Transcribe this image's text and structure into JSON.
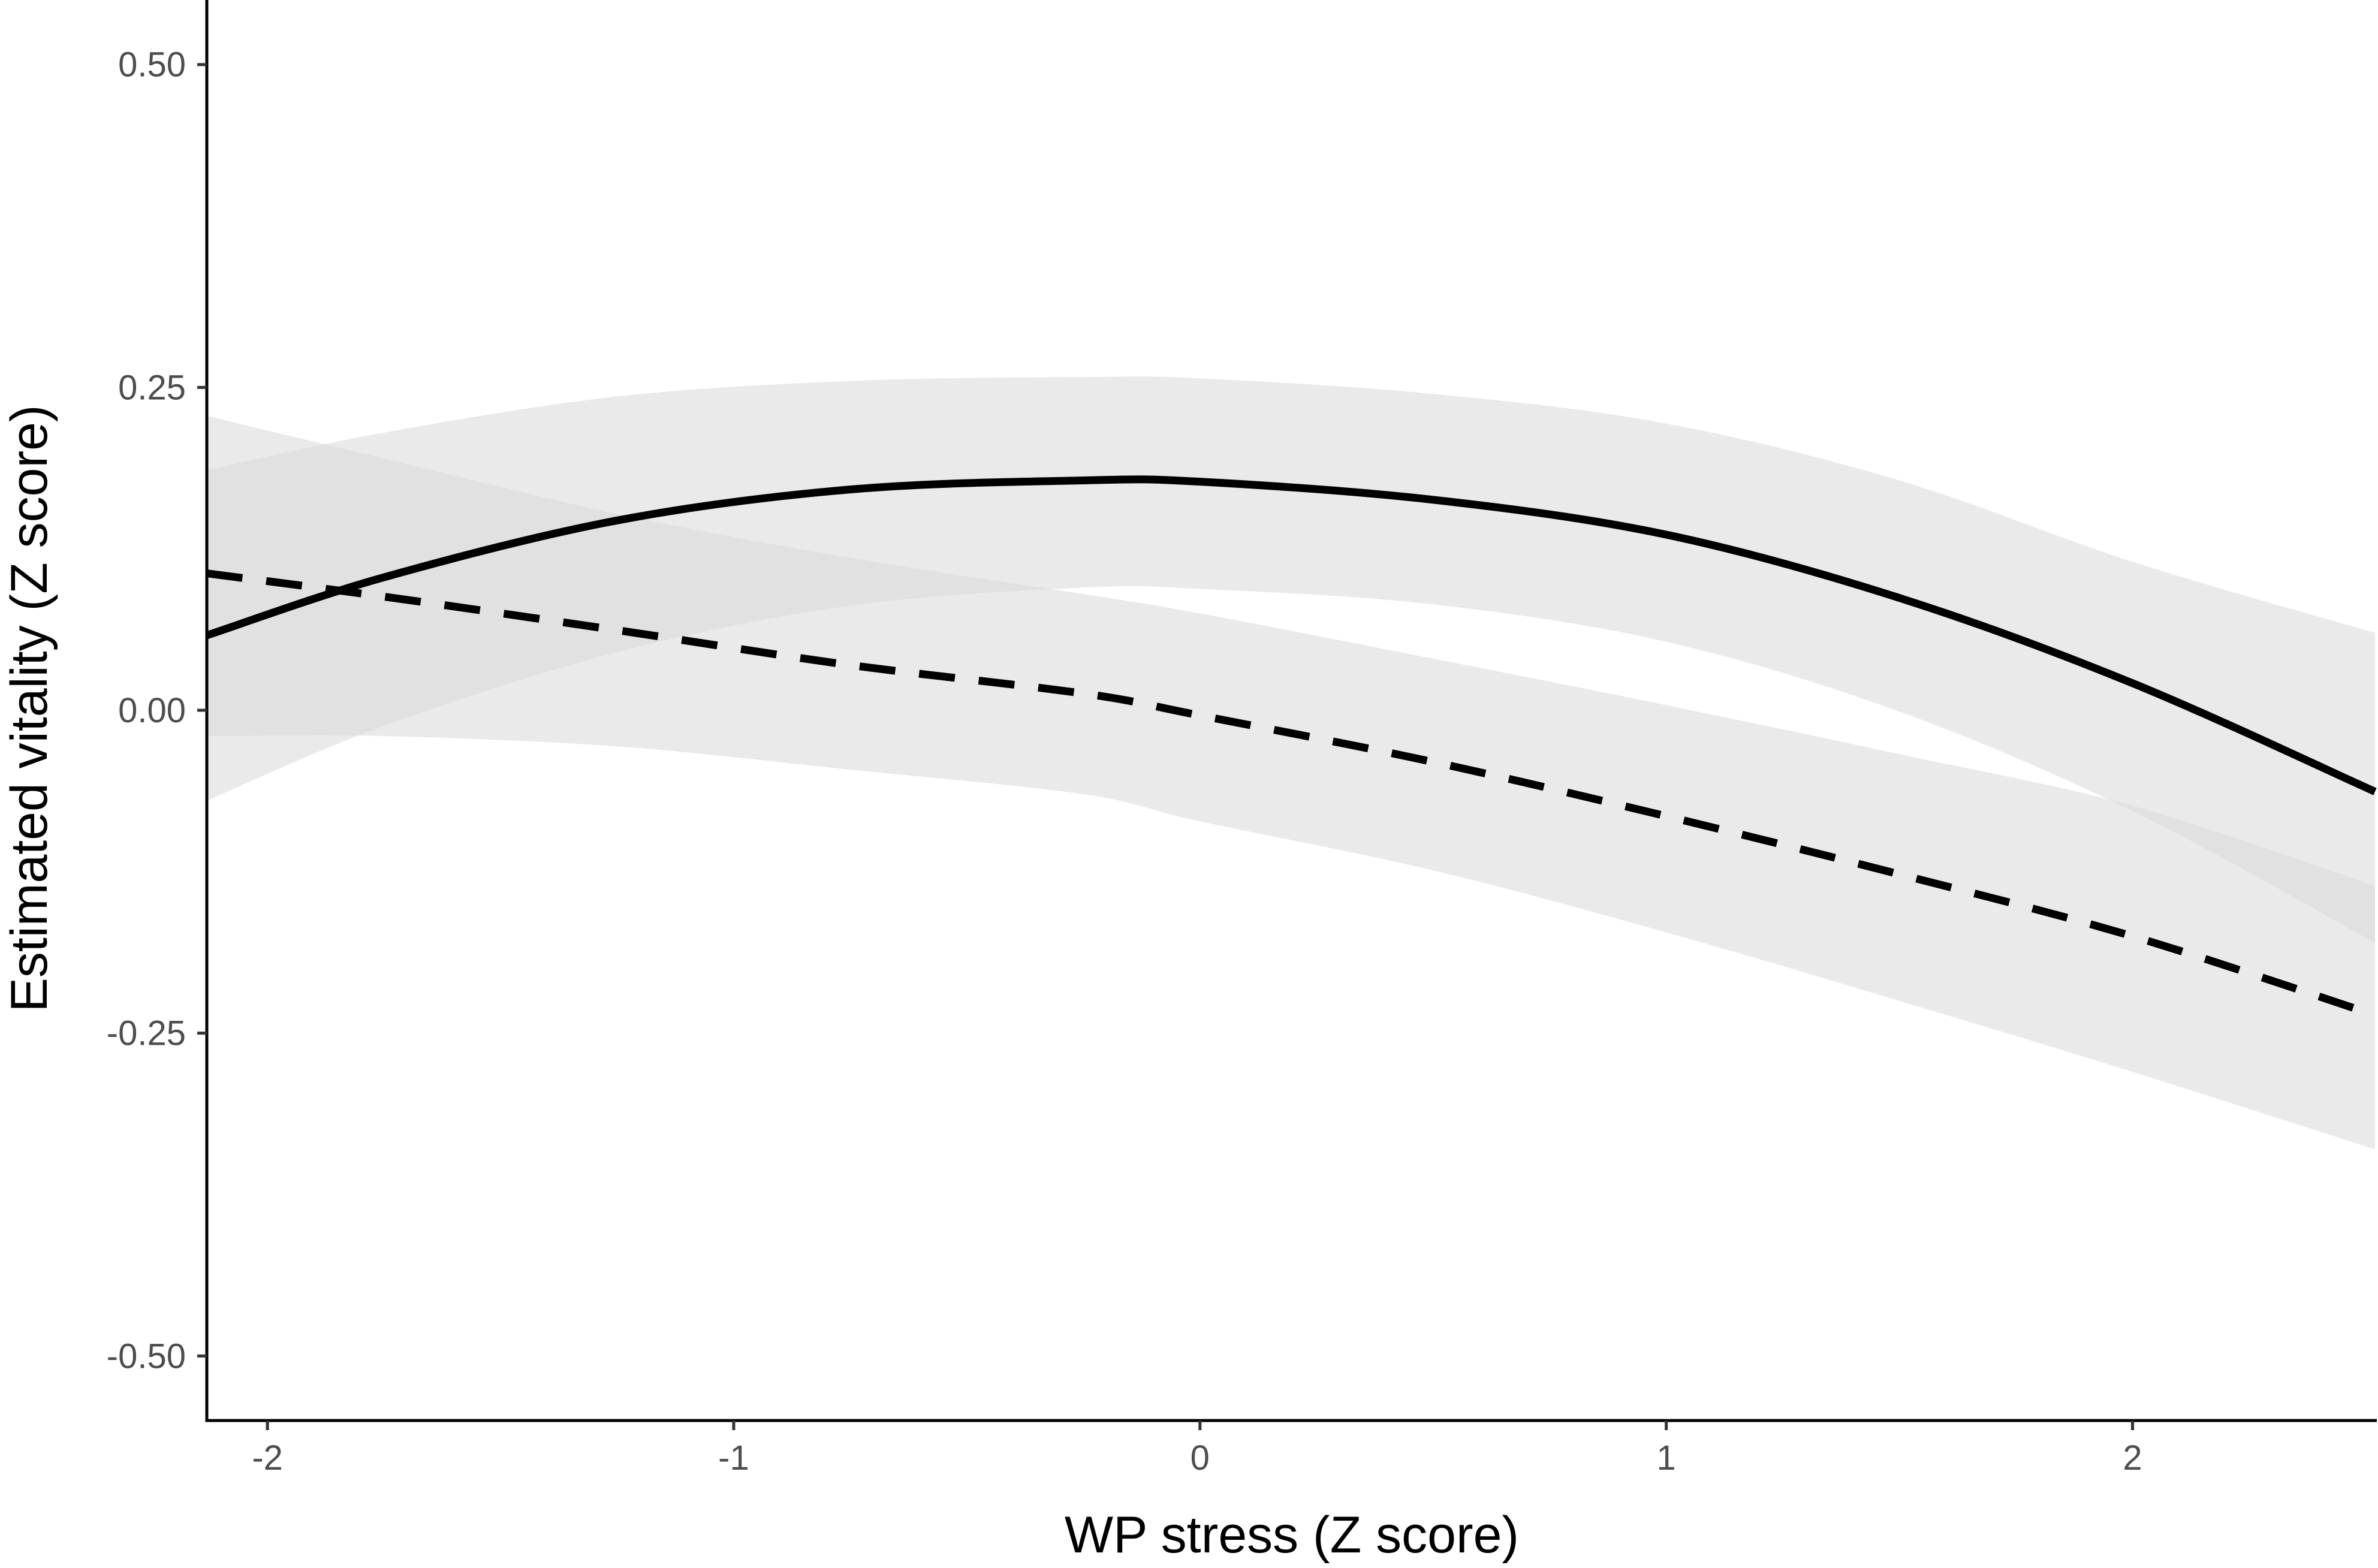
{
  "chart_data": {
    "type": "line",
    "xlabel": "WP stress (Z score)",
    "ylabel": "Estimated vitality (Z score)",
    "xlim": [
      -2.13,
      2.52
    ],
    "ylim": [
      -0.55,
      0.55
    ],
    "x_ticks": [
      -2,
      -1,
      0,
      1,
      2
    ],
    "x_tick_labels": [
      "-2",
      "-1",
      "0",
      "1",
      "2"
    ],
    "y_ticks": [
      -0.5,
      -0.25,
      0,
      0.25,
      0.5
    ],
    "y_tick_labels": [
      "-0.50",
      "-0.25",
      "0.00",
      "0.25",
      "0.50"
    ],
    "grid": false,
    "legend": "none",
    "series": [
      {
        "line_style": "solid",
        "color": "#000000",
        "band_color": "#d9d9d9",
        "points": [
          {
            "x": -2.13,
            "y": 0.058,
            "lower": -0.07,
            "upper": 0.186
          },
          {
            "x": -1.75,
            "y": 0.103,
            "lower": -0.012,
            "upper": 0.215
          },
          {
            "x": -1.25,
            "y": 0.147,
            "lower": 0.045,
            "upper": 0.243
          },
          {
            "x": -0.75,
            "y": 0.171,
            "lower": 0.081,
            "upper": 0.255
          },
          {
            "x": -0.25,
            "y": 0.178,
            "lower": 0.095,
            "upper": 0.258
          },
          {
            "x": 0.0,
            "y": 0.177,
            "lower": 0.094,
            "upper": 0.257
          },
          {
            "x": 0.5,
            "y": 0.163,
            "lower": 0.082,
            "upper": 0.245
          },
          {
            "x": 1.0,
            "y": 0.136,
            "lower": 0.053,
            "upper": 0.222
          },
          {
            "x": 1.5,
            "y": 0.087,
            "lower": -0.001,
            "upper": 0.178
          },
          {
            "x": 2.0,
            "y": 0.021,
            "lower": -0.078,
            "upper": 0.115
          },
          {
            "x": 2.52,
            "y": -0.063,
            "lower": -0.18,
            "upper": 0.06
          }
        ]
      },
      {
        "line_style": "dashed",
        "color": "#000000",
        "band_color": "#d9d9d9",
        "points": [
          {
            "x": -2.13,
            "y": 0.106,
            "lower": -0.02,
            "upper": 0.228
          },
          {
            "x": -1.75,
            "y": 0.088,
            "lower": -0.02,
            "upper": 0.195
          },
          {
            "x": -1.25,
            "y": 0.062,
            "lower": -0.028,
            "upper": 0.152
          },
          {
            "x": -0.75,
            "y": 0.035,
            "lower": -0.046,
            "upper": 0.118
          },
          {
            "x": -0.25,
            "y": 0.013,
            "lower": -0.065,
            "upper": 0.09
          },
          {
            "x": 0.0,
            "y": -0.004,
            "lower": -0.086,
            "upper": 0.075
          },
          {
            "x": 0.5,
            "y": -0.04,
            "lower": -0.124,
            "upper": 0.04
          },
          {
            "x": 1.0,
            "y": -0.082,
            "lower": -0.172,
            "upper": 0.004
          },
          {
            "x": 1.5,
            "y": -0.127,
            "lower": -0.225,
            "upper": -0.034
          },
          {
            "x": 2.0,
            "y": -0.175,
            "lower": -0.28,
            "upper": -0.074
          },
          {
            "x": 2.52,
            "y": -0.236,
            "lower": -0.34,
            "upper": -0.136
          }
        ]
      }
    ]
  }
}
